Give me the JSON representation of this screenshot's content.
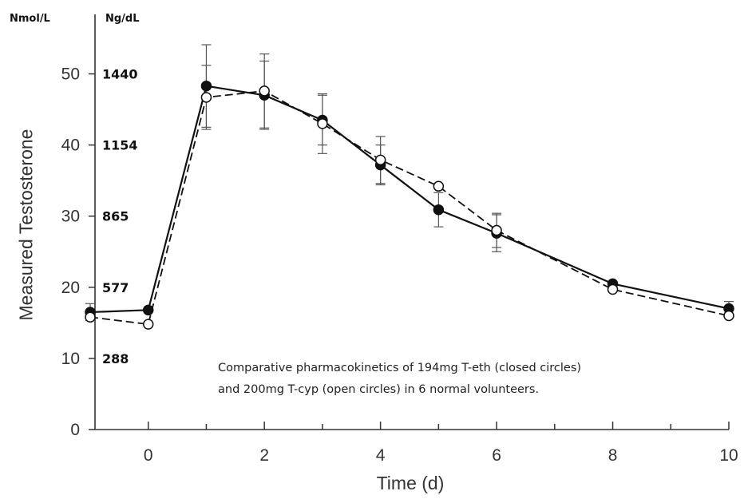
{
  "chart_data": {
    "type": "line",
    "ylabel": "Measured Testosterone",
    "xlabel": "Time (d)",
    "xlim": [
      -1,
      10
    ],
    "ylim": [
      0,
      55
    ],
    "x_ticks": [
      "0",
      "2",
      "4",
      "6",
      "8",
      "10"
    ],
    "x_tick_values": [
      0,
      2,
      4,
      6,
      8,
      10
    ],
    "y_ticks": [
      "0",
      "10",
      "20",
      "30",
      "40",
      "50"
    ],
    "y_tick_values": [
      0,
      10,
      20,
      30,
      40,
      50
    ],
    "units_left": "Nmol/L",
    "units_right": "Ng/dL",
    "ng_ticks": [
      "288",
      "577",
      "865",
      "1154",
      "1440"
    ],
    "ng_tick_positions_nmol": [
      10,
      20,
      30,
      40,
      50
    ],
    "annotation": [
      "Comparative pharmacokinetics of 194mg T-eth (closed circles)",
      "and 200mg T-cyp (open circles) in 6 normal volunteers."
    ],
    "grid": false,
    "series": [
      {
        "marker": "closed-circle",
        "line_style": "solid",
        "x": [
          -1,
          0,
          1,
          2,
          3,
          4,
          5,
          6,
          8,
          10
        ],
        "y": [
          16.5,
          16.8,
          48.3,
          47.0,
          43.5,
          37.2,
          30.9,
          27.6,
          20.5,
          17.0
        ],
        "err": [
          1.2,
          null,
          5.8,
          4.8,
          3.5,
          2.8,
          2.4,
          2.6,
          null,
          1.0
        ]
      },
      {
        "marker": "open-circle",
        "line_style": "dashed",
        "x": [
          -1,
          0,
          1,
          2,
          3,
          4,
          5,
          6,
          8,
          10
        ],
        "y": [
          15.8,
          14.8,
          46.7,
          47.6,
          43.0,
          37.9,
          34.2,
          28.0,
          19.7,
          16.0
        ],
        "err": [
          null,
          null,
          4.5,
          5.2,
          4.2,
          3.3,
          null,
          2.4,
          null,
          null
        ]
      }
    ]
  }
}
